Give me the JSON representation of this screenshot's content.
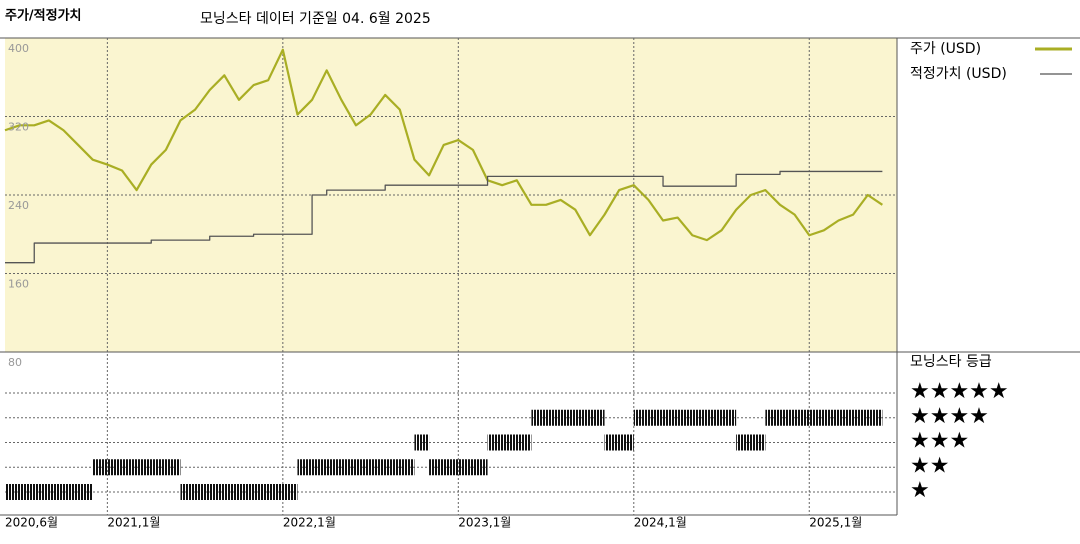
{
  "chart_data": {
    "type": "line",
    "title": "주가/적정가치",
    "subtitle": "모닝스타 데이터 기준일 04. 6월 2025",
    "xlim": [
      "2020-06",
      "2025-07"
    ],
    "xticks": [
      {
        "value": "2020-06",
        "label": "2020,6월"
      },
      {
        "value": "2021-01",
        "label": "2021,1월"
      },
      {
        "value": "2022-01",
        "label": "2022,1월"
      },
      {
        "value": "2023-01",
        "label": "2023,1월"
      },
      {
        "value": "2024-01",
        "label": "2024,1월"
      },
      {
        "value": "2025-01",
        "label": "2025,1월"
      }
    ],
    "ylim": [
      80,
      400
    ],
    "yticks": [
      80,
      160,
      240,
      320,
      400
    ],
    "grid": true,
    "series": [
      {
        "name": "주가 (USD)",
        "color": "#a9ae24",
        "step": false,
        "x": [
          "2020-06",
          "2020-07",
          "2020-08",
          "2020-09",
          "2020-10",
          "2020-11",
          "2020-12",
          "2021-01",
          "2021-02",
          "2021-03",
          "2021-04",
          "2021-05",
          "2021-06",
          "2021-07",
          "2021-08",
          "2021-09",
          "2021-10",
          "2021-11",
          "2021-12",
          "2022-01",
          "2022-02",
          "2022-03",
          "2022-04",
          "2022-05",
          "2022-06",
          "2022-07",
          "2022-08",
          "2022-09",
          "2022-10",
          "2022-11",
          "2022-12",
          "2023-01",
          "2023-02",
          "2023-03",
          "2023-04",
          "2023-05",
          "2023-06",
          "2023-07",
          "2023-08",
          "2023-09",
          "2023-10",
          "2023-11",
          "2023-12",
          "2024-01",
          "2024-02",
          "2024-03",
          "2024-04",
          "2024-05",
          "2024-06",
          "2024-07",
          "2024-08",
          "2024-09",
          "2024-10",
          "2024-11",
          "2024-12",
          "2025-01",
          "2025-02",
          "2025-03",
          "2025-04",
          "2025-05",
          "2025-06"
        ],
        "values": [
          306,
          311,
          311,
          316,
          306,
          291,
          276,
          271,
          265,
          245,
          271,
          286,
          316,
          327,
          347,
          362,
          337,
          352,
          357,
          388,
          322,
          337,
          367,
          337,
          311,
          322,
          342,
          327,
          276,
          260,
          291,
          296,
          286,
          255,
          250,
          255,
          230,
          230,
          235,
          225,
          199,
          220,
          245,
          250,
          235,
          214,
          217,
          199,
          194,
          204,
          225,
          240,
          245,
          230,
          220,
          199,
          204,
          214,
          220,
          240,
          230
        ]
      },
      {
        "name": "적정가치 (USD)",
        "color": "#555555",
        "step": true,
        "x": [
          "2020-06",
          "2020-08",
          "2021-04",
          "2021-08",
          "2021-11",
          "2022-03",
          "2022-04",
          "2022-08",
          "2023-03",
          "2024-03",
          "2024-08",
          "2024-11",
          "2025-06"
        ],
        "values": [
          171,
          191,
          194,
          198,
          200,
          240,
          245,
          250,
          259,
          249,
          261,
          264,
          264
        ]
      }
    ],
    "rating_title": "모닝스타 등급",
    "rating_labels": [
      "★",
      "★★",
      "★★★",
      "★★★★",
      "★★★★★"
    ],
    "ratings": {
      "start": [
        "2020-06",
        "2020-12",
        "2021-06",
        "2022-02",
        "2022-10",
        "2022-11",
        "2023-03",
        "2023-06",
        "2023-11",
        "2024-01",
        "2024-08",
        "2024-10"
      ],
      "end": [
        "2020-12",
        "2021-06",
        "2022-02",
        "2022-10",
        "2022-11",
        "2023-03",
        "2023-06",
        "2023-11",
        "2024-01",
        "2024-08",
        "2024-10",
        "2025-06"
      ],
      "values": [
        1,
        2,
        1,
        2,
        3,
        2,
        3,
        4,
        3,
        4,
        3,
        4
      ]
    }
  }
}
